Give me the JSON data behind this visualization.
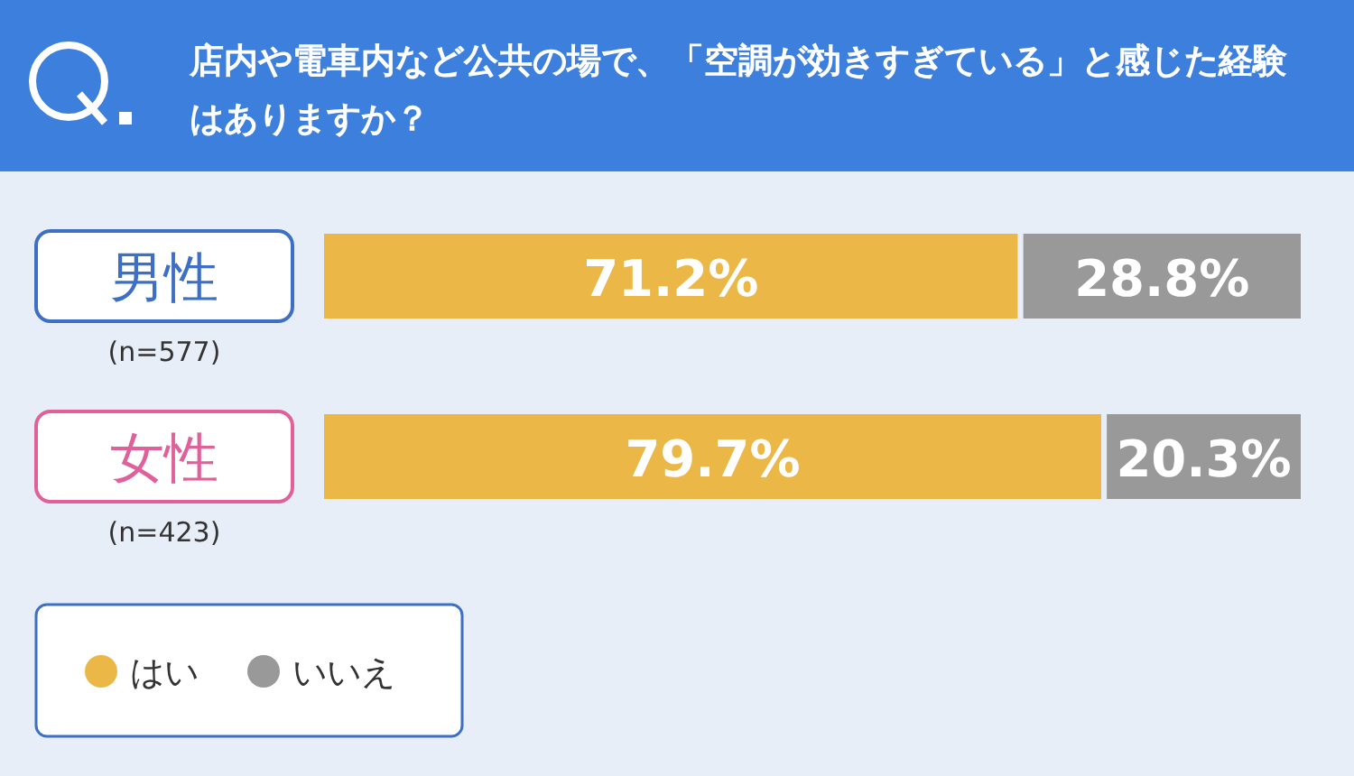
{
  "chart_data": {
    "type": "bar",
    "orientation": "horizontal",
    "stacked": true,
    "title": "店内や電車内など公共の場で、「空調が効きすぎている」と感じた経験はありますか？",
    "categories": [
      "男性",
      "女性"
    ],
    "annotations": [
      "(n=577)",
      "(n=423)"
    ],
    "series": [
      {
        "name": "はい",
        "color": "#ebb847",
        "values": [
          71.2,
          79.7
        ],
        "value_labels": [
          "71.2%",
          "79.7%"
        ]
      },
      {
        "name": "いいえ",
        "color": "#999999",
        "values": [
          28.8,
          20.3
        ],
        "value_labels": [
          "28.8%",
          "20.3%"
        ]
      }
    ],
    "legend": "bottom left"
  }
}
